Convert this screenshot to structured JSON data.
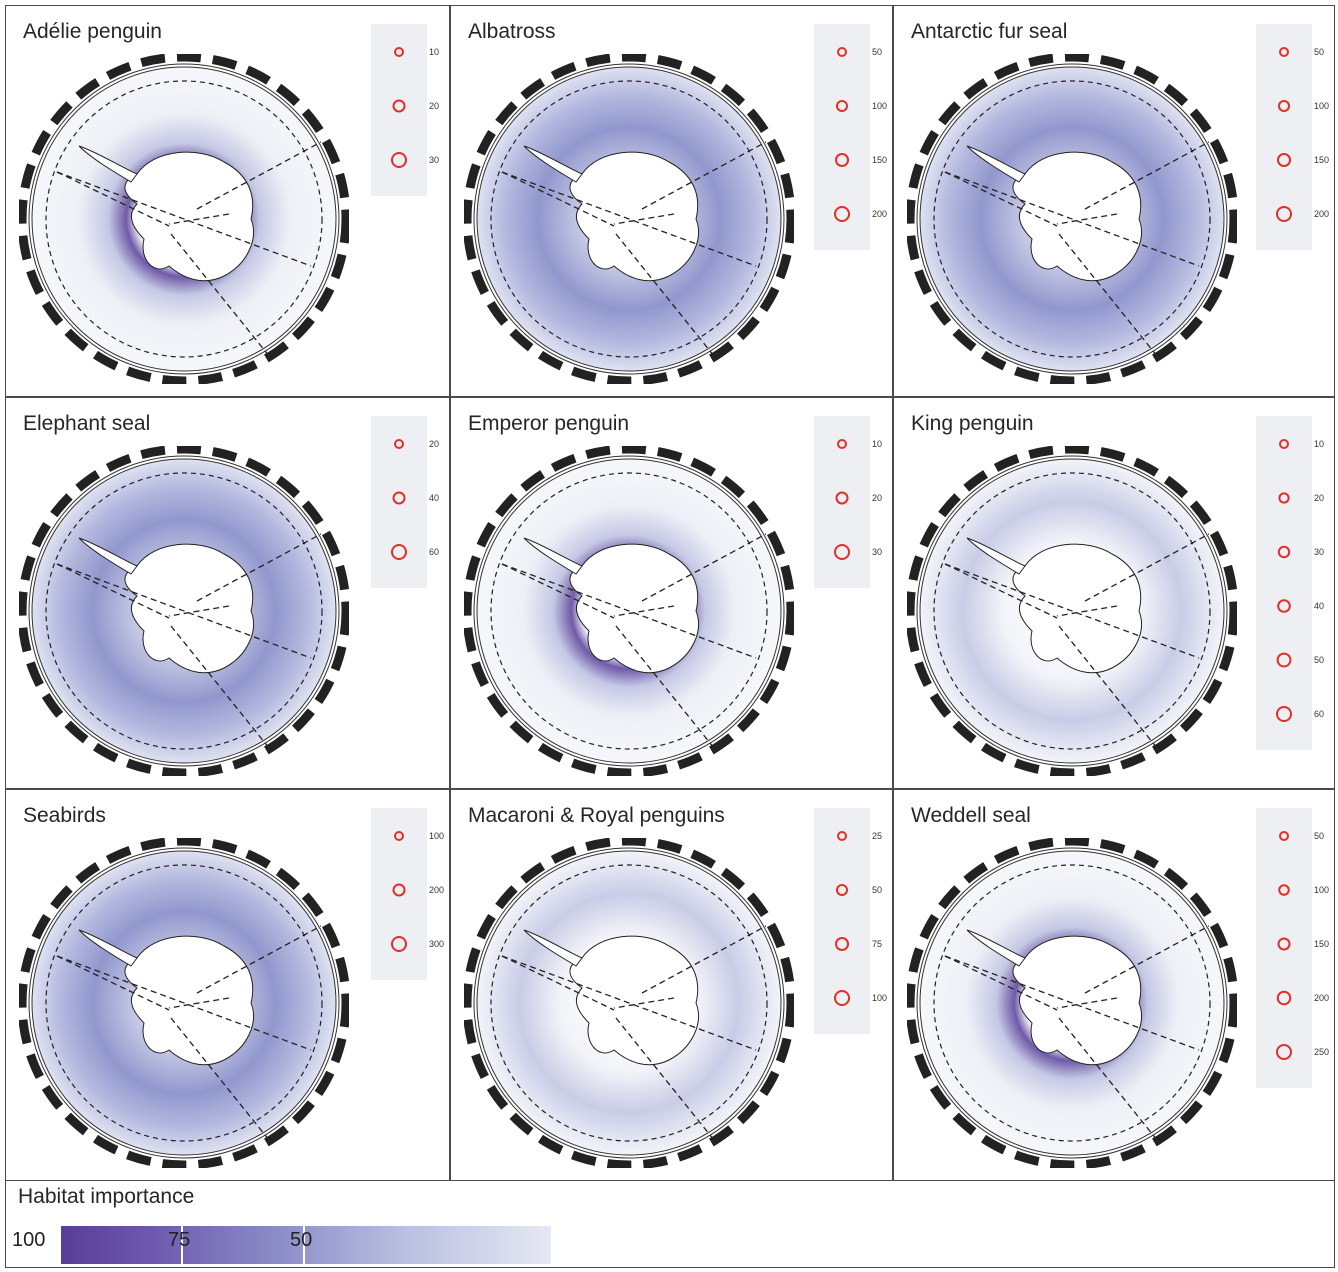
{
  "panels": [
    {
      "title": "Adélie penguin",
      "legend": [
        "10",
        "20",
        "30"
      ],
      "pattern": "coastal"
    },
    {
      "title": "Albatross",
      "legend": [
        "50",
        "100",
        "150",
        "200"
      ],
      "pattern": "wide"
    },
    {
      "title": "Antarctic fur seal",
      "legend": [
        "50",
        "100",
        "150",
        "200"
      ],
      "pattern": "wide"
    },
    {
      "title": "Elephant seal",
      "legend": [
        "20",
        "40",
        "60"
      ],
      "pattern": "wide"
    },
    {
      "title": "Emperor penguin",
      "legend": [
        "10",
        "20",
        "30"
      ],
      "pattern": "coastal"
    },
    {
      "title": "King penguin",
      "legend": [
        "10",
        "20",
        "30",
        "40",
        "50",
        "60"
      ],
      "pattern": "patchy"
    },
    {
      "title": "Seabirds",
      "legend": [
        "100",
        "200",
        "300"
      ],
      "pattern": "wide"
    },
    {
      "title": "Macaroni & Royal penguins",
      "legend": [
        "25",
        "50",
        "75",
        "100"
      ],
      "pattern": "patchy"
    },
    {
      "title": "Weddell seal",
      "legend": [
        "50",
        "100",
        "150",
        "200",
        "250"
      ],
      "pattern": "coastal"
    }
  ],
  "scale": {
    "title": "Habitat importance",
    "labels": [
      "100",
      "75",
      "50"
    ]
  },
  "colors": {
    "habitat_dark": "#5a3d96",
    "habitat_light": "#e6e8f3",
    "colony_marker": "#f29e2e",
    "site_circle": "#e0302a"
  }
}
